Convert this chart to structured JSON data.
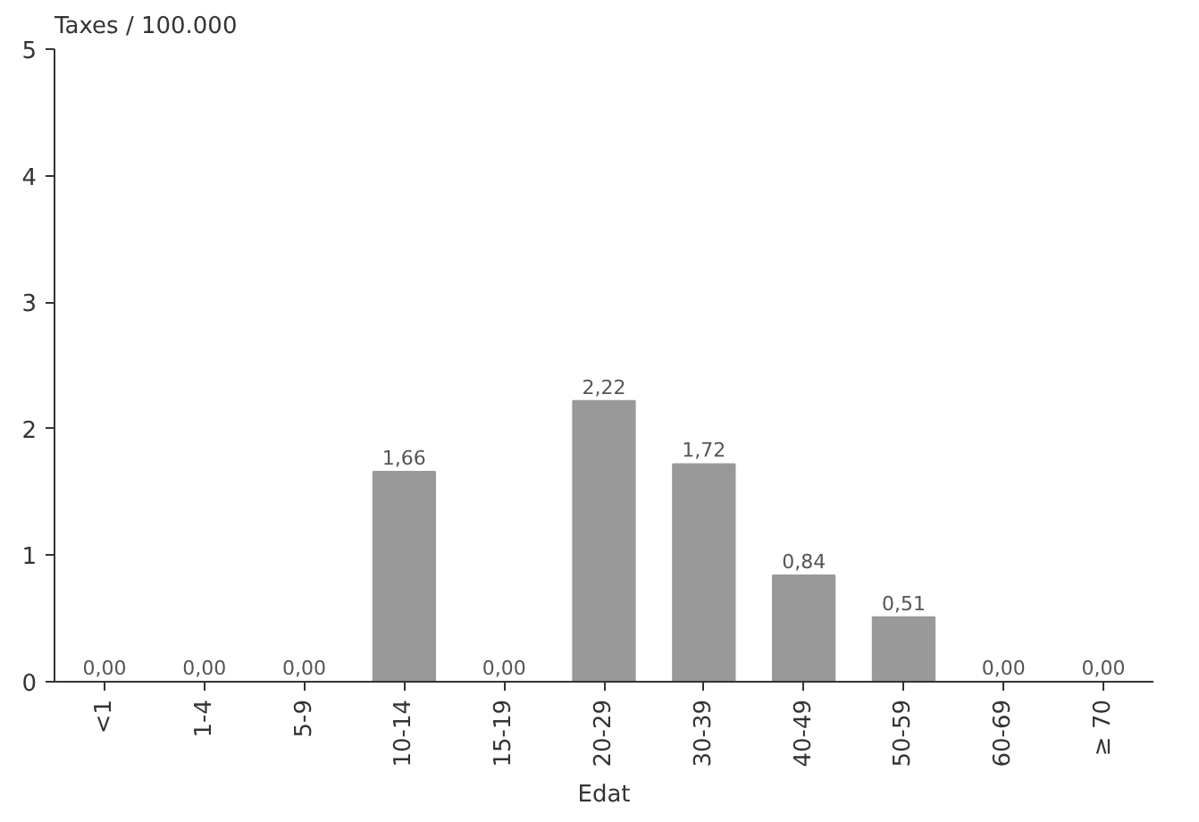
{
  "chart_data": {
    "type": "bar",
    "ylabel": "Taxes / 100.000",
    "xlabel": "Edat",
    "categories": [
      "<1",
      "1-4",
      "5-9",
      "10-14",
      "15-19",
      "20-29",
      "30-39",
      "40-49",
      "50-59",
      "60-69",
      "≥ 70"
    ],
    "values": [
      0,
      0,
      0,
      1.66,
      0,
      2.22,
      1.72,
      0.84,
      0.51,
      0,
      0
    ],
    "value_labels": [
      "0,00",
      "0,00",
      "0,00",
      "1,66",
      "0,00",
      "2,22",
      "1,72",
      "0,84",
      "0,51",
      "0,00",
      "0,00"
    ],
    "color": "#999999",
    "ylim": [
      0,
      5
    ],
    "yticks": [
      0,
      1,
      2,
      3,
      4,
      5
    ],
    "grid": false
  }
}
